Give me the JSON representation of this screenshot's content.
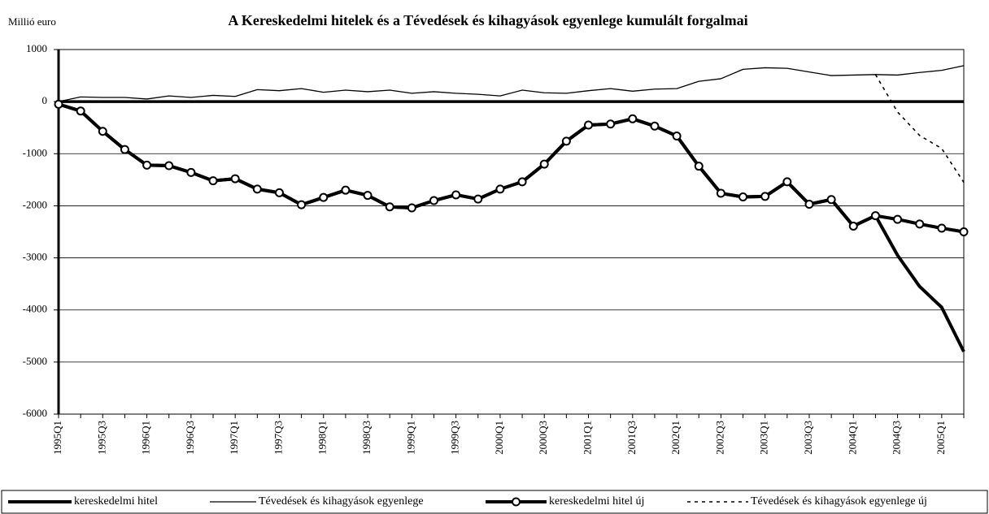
{
  "chart_data": {
    "type": "line",
    "title": "A Kereskedelmi hitelek és a Tévedések és kihagyások egyenlege kumulált forgalmai",
    "y_label": "Millió euro",
    "categories": [
      "1995Q1",
      null,
      "1995Q3",
      null,
      "1996Q1",
      null,
      "1996Q3",
      null,
      "1997Q1",
      null,
      "1997Q3",
      null,
      "1998Q1",
      null,
      "1998Q3",
      null,
      "1999Q1",
      null,
      "1999Q3",
      null,
      "2000Q1",
      null,
      "2000Q3",
      null,
      "2001Q1",
      null,
      "2001Q3",
      null,
      "2002Q1",
      null,
      "2002Q3",
      null,
      "2003Q1",
      null,
      "2003Q3",
      null,
      "2004Q1",
      null,
      "2004Q3",
      null,
      "2005Q1",
      null
    ],
    "ylim": [
      -6000,
      1000
    ],
    "yticks": [
      -6000,
      -5000,
      -4000,
      -3000,
      -2000,
      -1000,
      0,
      1000
    ],
    "grid": true,
    "legend": "bottom",
    "series": [
      {
        "name": "kereskedelmi hitel",
        "color": "#000000",
        "style": "thick",
        "values": [
          -50,
          -180,
          -570,
          -920,
          -1220,
          -1230,
          -1360,
          -1520,
          -1480,
          -1680,
          -1750,
          -1980,
          -1840,
          -1700,
          -1800,
          -2020,
          -2040,
          -1900,
          -1790,
          -1870,
          -1680,
          -1540,
          -1200,
          -760,
          -450,
          -430,
          -330,
          -470,
          -660,
          -1240,
          -1760,
          -1830,
          -1820,
          -1540,
          -1970,
          -1880,
          -2390,
          -2190,
          -2950,
          -3550,
          -3950,
          -4800
        ]
      },
      {
        "name": "Tévedések és kihagyások egyenlege",
        "color": "#000000",
        "style": "thin",
        "values": [
          0,
          90,
          80,
          80,
          50,
          110,
          80,
          120,
          100,
          230,
          210,
          250,
          180,
          220,
          190,
          220,
          160,
          190,
          160,
          140,
          110,
          220,
          170,
          160,
          210,
          250,
          200,
          240,
          250,
          390,
          440,
          620,
          650,
          640,
          570,
          500,
          510,
          520,
          510,
          560,
          600,
          690
        ]
      },
      {
        "name": "kereskedelmi hitel új",
        "color": "#000000",
        "style": "thick-circle",
        "values": [
          -50,
          -180,
          -570,
          -920,
          -1220,
          -1230,
          -1360,
          -1520,
          -1480,
          -1680,
          -1750,
          -1980,
          -1840,
          -1700,
          -1800,
          -2020,
          -2040,
          -1900,
          -1790,
          -1870,
          -1680,
          -1540,
          -1200,
          -760,
          -450,
          -430,
          -330,
          -470,
          -660,
          -1240,
          -1760,
          -1830,
          -1820,
          -1540,
          -1970,
          -1880,
          -2390,
          -2190,
          -2260,
          -2350,
          -2430,
          -2500
        ]
      },
      {
        "name": "Tévedések és kihagyások egyenlege új",
        "color": "#000000",
        "style": "dotted",
        "values": [
          null,
          null,
          null,
          null,
          null,
          null,
          null,
          null,
          null,
          null,
          null,
          null,
          null,
          null,
          null,
          null,
          null,
          null,
          null,
          null,
          null,
          null,
          null,
          null,
          null,
          null,
          null,
          null,
          null,
          null,
          null,
          null,
          null,
          null,
          null,
          null,
          null,
          520,
          -200,
          -650,
          -900,
          -1550
        ]
      }
    ]
  }
}
